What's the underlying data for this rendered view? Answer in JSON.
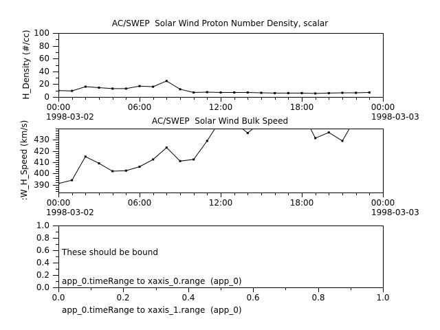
{
  "window": {
    "background": "#ffffff",
    "foreground": "#000000"
  },
  "time_axis": {
    "tick_labels": [
      "00:00",
      "06:00",
      "12:00",
      "18:00",
      "00:00"
    ],
    "tick_hours": [
      0,
      6,
      12,
      18,
      24
    ],
    "minor_step_hours": 1,
    "range_hours": [
      0,
      24
    ],
    "start_date": "1998-03-02",
    "end_date": "1998-03-03"
  },
  "chart_data": [
    {
      "type": "line",
      "title": "AC/SWEP  Solar Wind Proton Number Density, scalar",
      "ylabel": "H_Density (#/cc)",
      "x_axis": "time",
      "x_hours": [
        0,
        1,
        2,
        3,
        4,
        5,
        6,
        7,
        8,
        9,
        10,
        11,
        12,
        13,
        14,
        15,
        16,
        17,
        18,
        19,
        20,
        21,
        22,
        23
      ],
      "values": [
        10,
        9.5,
        16,
        14.5,
        13,
        13,
        17,
        16,
        25,
        12,
        7,
        7.5,
        7,
        7,
        7,
        6.5,
        6,
        6,
        6,
        5.5,
        6,
        6.5,
        6.5,
        7
      ],
      "ylim": [
        0,
        100
      ],
      "ytick_values": [
        0,
        20,
        40,
        60,
        80,
        100
      ],
      "ytick_labels": [
        "0",
        "20",
        "40",
        "60",
        "80",
        "100"
      ],
      "y_minor_step": 10,
      "marker": "filled-square",
      "line_color": "#000000",
      "grid": false,
      "legend": "none"
    },
    {
      "type": "line",
      "title": "AC/SWEP  Solar Wind Bulk Speed",
      "ylabel": ":W_H_Speed (km/s)",
      "x_axis": "time",
      "x_hours": [
        0,
        1,
        2,
        3,
        4,
        5,
        6,
        7,
        8,
        9,
        10,
        11,
        12,
        13,
        14,
        15,
        16,
        17,
        18,
        19,
        20,
        21,
        22,
        23
      ],
      "values": [
        391,
        394,
        415,
        409,
        402,
        402.5,
        406,
        412.5,
        423,
        411,
        412.5,
        429,
        448,
        446,
        436,
        446,
        450,
        453,
        455,
        431.5,
        436.5,
        429,
        450,
        452
      ],
      "values_note": "points above 440 km/s exit the top of the axis (clipped); clipped values are estimates",
      "ylim": [
        383,
        440
      ],
      "ytick_values": [
        390,
        400,
        410,
        420,
        430
      ],
      "ytick_labels": [
        "390",
        "400",
        "410",
        "420",
        "430"
      ],
      "y_minor_step": 2,
      "marker": "filled-square",
      "line_color": "#000000",
      "grid": false,
      "legend": "none"
    },
    {
      "type": "empty",
      "title": "",
      "x_axis": "linear",
      "xlim": [
        0,
        1
      ],
      "ylim": [
        0,
        1
      ],
      "xtick_values": [
        0,
        0.2,
        0.4,
        0.6,
        0.8,
        1
      ],
      "xtick_labels": [
        "0.0",
        "0.2",
        "0.4",
        "0.6",
        "0.8",
        "1.0"
      ],
      "x_minor_step": 0.1,
      "ytick_values": [
        0,
        0.2,
        0.4,
        0.6,
        0.8,
        1
      ],
      "ytick_labels": [
        "0.0",
        "0.2",
        "0.4",
        "0.6",
        "0.8",
        "1.0"
      ],
      "y_minor_step": 0.1,
      "annotation": [
        "These should be bound",
        "app_0.timeRange to xaxis_0.range  (app_0)",
        "app_0.timeRange to xaxis_1.range  (app_0)"
      ],
      "grid": false
    }
  ]
}
